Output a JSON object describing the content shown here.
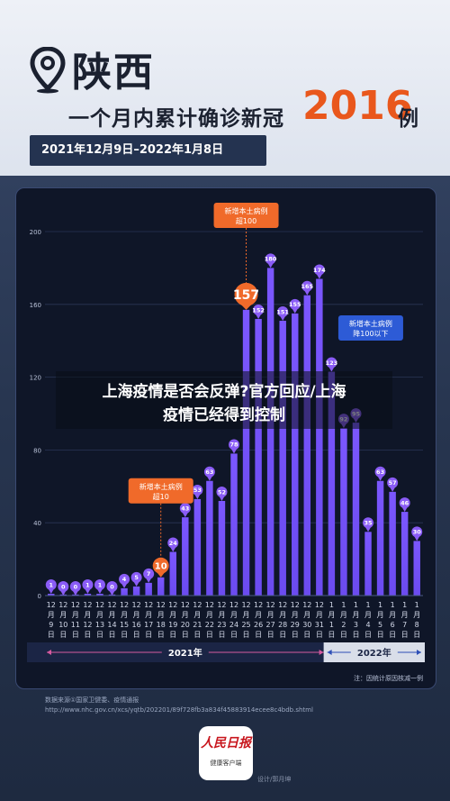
{
  "header": {
    "province": "陕西",
    "headline_prefix": "一个月内累计确诊新冠",
    "headline_number": "2016",
    "headline_suffix": "例",
    "date_range": "2021年12月9日–2022年1月8日"
  },
  "overlay": {
    "line1": "上海疫情是否会反弹?官方回应/上海",
    "line2": "疫情已经得到控制"
  },
  "chart_data": {
    "type": "bar",
    "ylim": [
      0,
      200
    ],
    "yticks": [
      0,
      40,
      80,
      120,
      160,
      200
    ],
    "bar_color": "#6b4bf0",
    "bar_color_top": "#7b57ff",
    "highlight_color": "#f06a2a",
    "categories": [
      [
        "12",
        "月",
        "9",
        "日"
      ],
      [
        "12",
        "月",
        "10",
        "日"
      ],
      [
        "12",
        "月",
        "11",
        "日"
      ],
      [
        "12",
        "月",
        "12",
        "日"
      ],
      [
        "12",
        "月",
        "13",
        "日"
      ],
      [
        "12",
        "月",
        "14",
        "日"
      ],
      [
        "12",
        "月",
        "15",
        "日"
      ],
      [
        "12",
        "月",
        "16",
        "日"
      ],
      [
        "12",
        "月",
        "17",
        "日"
      ],
      [
        "12",
        "月",
        "18",
        "日"
      ],
      [
        "12",
        "月",
        "19",
        "日"
      ],
      [
        "12",
        "月",
        "20",
        "日"
      ],
      [
        "12",
        "月",
        "21",
        "日"
      ],
      [
        "12",
        "月",
        "22",
        "日"
      ],
      [
        "12",
        "月",
        "23",
        "日"
      ],
      [
        "12",
        "月",
        "24",
        "日"
      ],
      [
        "12",
        "月",
        "25",
        "日"
      ],
      [
        "12",
        "月",
        "26",
        "日"
      ],
      [
        "12",
        "月",
        "27",
        "日"
      ],
      [
        "12",
        "月",
        "28",
        "日"
      ],
      [
        "12",
        "月",
        "29",
        "日"
      ],
      [
        "12",
        "月",
        "30",
        "日"
      ],
      [
        "12",
        "月",
        "31",
        "日"
      ],
      [
        "1",
        "月",
        "1",
        "日"
      ],
      [
        "1",
        "月",
        "2",
        "日"
      ],
      [
        "1",
        "月",
        "3",
        "日"
      ],
      [
        "1",
        "月",
        "4",
        "日"
      ],
      [
        "1",
        "月",
        "5",
        "日"
      ],
      [
        "1",
        "月",
        "6",
        "日"
      ],
      [
        "1",
        "月",
        "7",
        "日"
      ],
      [
        "1",
        "月",
        "8",
        "日"
      ]
    ],
    "values": [
      1,
      0,
      0,
      1,
      1,
      0,
      4,
      5,
      7,
      10,
      24,
      43,
      53,
      63,
      52,
      78,
      157,
      152,
      180,
      151,
      155,
      165,
      174,
      123,
      92,
      95,
      35,
      63,
      57,
      46,
      30
    ],
    "value_labels": [
      "1",
      "0",
      "0",
      "1",
      "1",
      "0",
      "4",
      "5",
      "7",
      "10",
      "24",
      "43",
      "53",
      "63",
      "52",
      "78",
      "157",
      "152",
      "180",
      "151",
      "155",
      "165",
      "174",
      "123",
      "92",
      "95",
      "35",
      "63",
      "57",
      "46",
      "30"
    ],
    "highlight_indices": [
      9,
      16
    ],
    "annotations": [
      {
        "text1": "新增本土病例",
        "text2": "超10",
        "index": 9,
        "color": "#f06a2a"
      },
      {
        "text1": "新增本土病例",
        "text2": "超100",
        "index": 16,
        "color": "#f06a2a"
      },
      {
        "text1": "新增本土病例",
        "text2": "降100以下",
        "index": 24,
        "color": "#2d5bd6"
      }
    ],
    "years": [
      {
        "label": "2021年",
        "start": 0,
        "end": 22
      },
      {
        "label": "2022年",
        "start": 23,
        "end": 30
      }
    ],
    "note": "注：因统计原因核减一例"
  },
  "footer": {
    "source_line1": "数据来源①国家卫健委、疫情通报",
    "source_line2": "http://www.nhc.gov.cn/xcs/yqtb/202201/89f728fb3a834f45883914ecee8c4bdb.shtml",
    "logo_brand": "人民日报",
    "logo_sub": "健康客户端",
    "designer": "设计/郭月坤"
  }
}
